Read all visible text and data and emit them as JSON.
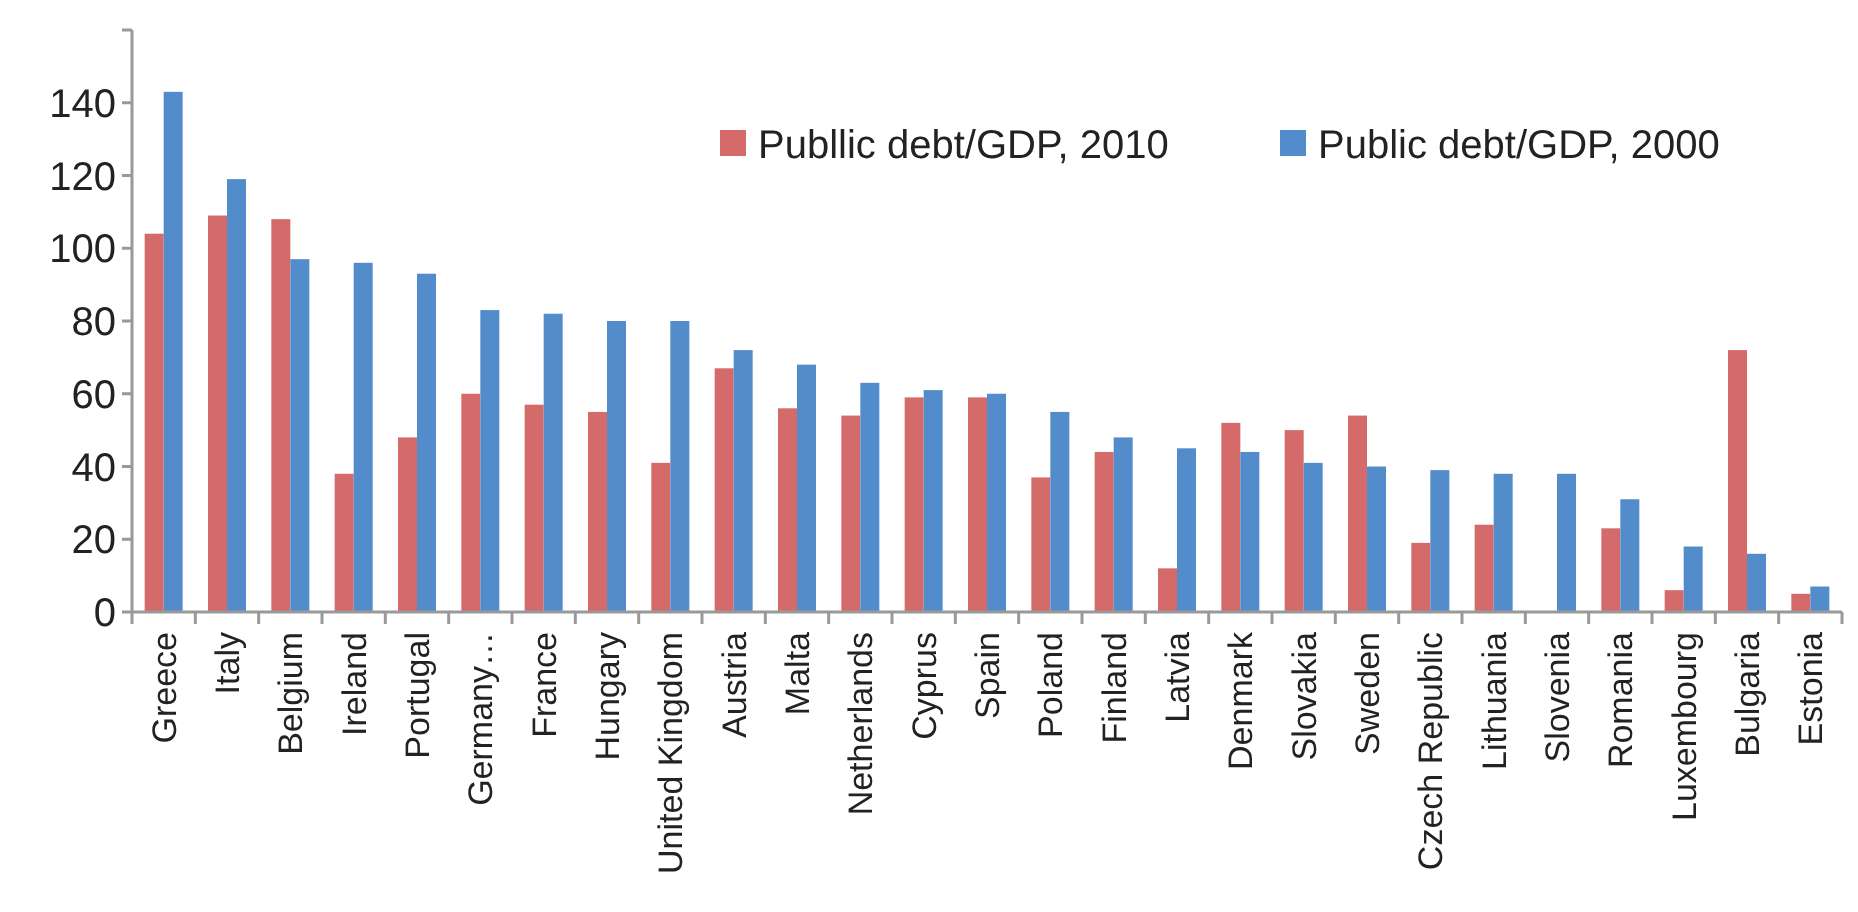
{
  "chart_data": {
    "type": "bar",
    "categories": [
      "Greece",
      "Italy",
      "Belgium",
      "Ireland",
      "Portugal",
      "Germany…",
      "France",
      "Hungary",
      "United Kingdom",
      "Austria",
      "Malta",
      "Netherlands",
      "Cyprus",
      "Spain",
      "Poland",
      "Finland",
      "Latvia",
      "Denmark",
      "Slovakia",
      "Sweden",
      "Czech Republic",
      "Lithuania",
      "Slovenia",
      "Romania",
      "Luxembourg",
      "Bulgaria",
      "Estonia"
    ],
    "series": [
      {
        "name": "Publlic debt/GDP, 2010",
        "color": "#d46a6a",
        "values": [
          104,
          109,
          108,
          38,
          48,
          60,
          57,
          55,
          41,
          67,
          56,
          54,
          59,
          59,
          37,
          44,
          12,
          52,
          50,
          54,
          19,
          24,
          null,
          23,
          6,
          72,
          5
        ]
      },
      {
        "name": "Public debt/GDP, 2000",
        "color": "#538ccb",
        "values": [
          143,
          119,
          97,
          96,
          93,
          83,
          82,
          80,
          80,
          72,
          68,
          63,
          61,
          60,
          55,
          48,
          45,
          44,
          41,
          40,
          39,
          38,
          38,
          31,
          18,
          16,
          7
        ]
      }
    ],
    "ylim": [
      0,
      160
    ],
    "yticks": [
      0,
      20,
      40,
      60,
      80,
      100,
      120,
      140,
      {
        "value": 160,
        "label": null
      }
    ],
    "grid": false,
    "legend": "top right"
  }
}
